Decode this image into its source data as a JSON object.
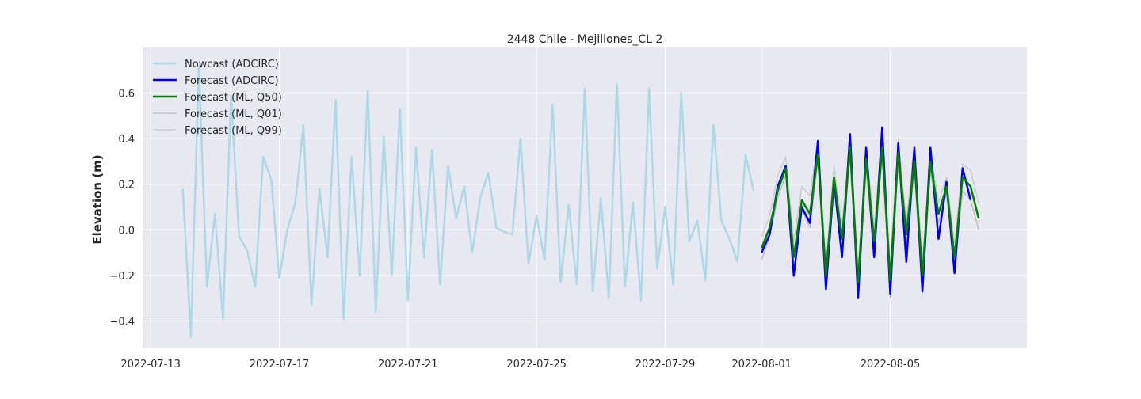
{
  "chart_data": {
    "type": "line",
    "title": "2448 Chile - Mejillones_CL 2",
    "xlabel": "",
    "ylabel": "Elevation (m)",
    "x_units": "date",
    "xlim": [
      "2022-07-12T18:00",
      "2022-08-09T06:00"
    ],
    "ylim": [
      -0.52,
      0.8
    ],
    "x_ticks": [
      "2022-07-13",
      "2022-07-17",
      "2022-07-21",
      "2022-07-25",
      "2022-07-29",
      "2022-08-01",
      "2022-08-05"
    ],
    "y_ticks": [
      -0.4,
      -0.2,
      0.0,
      0.2,
      0.4,
      0.6
    ],
    "y_tick_labels": [
      "−0.4",
      "−0.2",
      "0.0",
      "0.2",
      "0.4",
      "0.6"
    ],
    "background": "#e8e8f0",
    "grid": true,
    "legend_position": "upper-left",
    "series": [
      {
        "name": "Nowcast (ADCIRC)",
        "color": "#add8e6",
        "width": 2.5,
        "x": [
          "2022-07-14T00:00",
          "2022-07-14T06:00",
          "2022-07-14T12:00",
          "2022-07-14T18:00",
          "2022-07-15T00:00",
          "2022-07-15T06:00",
          "2022-07-15T12:00",
          "2022-07-15T18:00",
          "2022-07-16T00:00",
          "2022-07-16T06:00",
          "2022-07-16T12:00",
          "2022-07-16T18:00",
          "2022-07-17T00:00",
          "2022-07-17T06:00",
          "2022-07-17T12:00",
          "2022-07-17T18:00",
          "2022-07-18T00:00",
          "2022-07-18T06:00",
          "2022-07-18T12:00",
          "2022-07-18T18:00",
          "2022-07-19T00:00",
          "2022-07-19T06:00",
          "2022-07-19T12:00",
          "2022-07-19T18:00",
          "2022-07-20T00:00",
          "2022-07-20T06:00",
          "2022-07-20T12:00",
          "2022-07-20T18:00",
          "2022-07-21T00:00",
          "2022-07-21T06:00",
          "2022-07-21T12:00",
          "2022-07-21T18:00",
          "2022-07-22T00:00",
          "2022-07-22T06:00",
          "2022-07-22T12:00",
          "2022-07-22T18:00",
          "2022-07-23T00:00",
          "2022-07-23T06:00",
          "2022-07-23T12:00",
          "2022-07-23T18:00",
          "2022-07-24T00:00",
          "2022-07-24T06:00",
          "2022-07-24T12:00",
          "2022-07-24T18:00",
          "2022-07-25T00:00",
          "2022-07-25T06:00",
          "2022-07-25T12:00",
          "2022-07-25T18:00",
          "2022-07-26T00:00",
          "2022-07-26T06:00",
          "2022-07-26T12:00",
          "2022-07-26T18:00",
          "2022-07-27T00:00",
          "2022-07-27T06:00",
          "2022-07-27T12:00",
          "2022-07-27T18:00",
          "2022-07-28T00:00",
          "2022-07-28T06:00",
          "2022-07-28T12:00",
          "2022-07-28T18:00",
          "2022-07-29T00:00",
          "2022-07-29T06:00",
          "2022-07-29T12:00",
          "2022-07-29T18:00",
          "2022-07-30T00:00",
          "2022-07-30T06:00",
          "2022-07-30T12:00",
          "2022-07-30T18:00",
          "2022-07-31T00:00",
          "2022-07-31T06:00",
          "2022-07-31T12:00",
          "2022-07-31T18:00"
        ],
        "y": [
          0.18,
          -0.47,
          0.72,
          -0.25,
          0.07,
          -0.39,
          0.59,
          -0.03,
          -0.09,
          -0.25,
          0.32,
          0.22,
          -0.21,
          0.0,
          0.12,
          0.46,
          -0.33,
          0.18,
          -0.12,
          0.57,
          -0.39,
          0.32,
          -0.2,
          0.61,
          -0.36,
          0.41,
          -0.2,
          0.53,
          -0.31,
          0.36,
          -0.12,
          0.35,
          -0.24,
          0.28,
          0.05,
          0.19,
          -0.1,
          0.14,
          0.25,
          0.01,
          -0.01,
          -0.02,
          0.4,
          -0.15,
          0.06,
          -0.13,
          0.55,
          -0.23,
          0.11,
          -0.24,
          0.62,
          -0.27,
          0.14,
          -0.3,
          0.64,
          -0.25,
          0.12,
          -0.31,
          0.62,
          -0.17,
          0.1,
          -0.24,
          0.6,
          -0.05,
          0.04,
          -0.22,
          0.46,
          0.04,
          -0.04,
          -0.14,
          0.33,
          0.17
        ]
      },
      {
        "name": "Forecast (ADCIRC)",
        "color": "#0000ee",
        "width": 2.5,
        "x": [
          "2022-08-01T00:00",
          "2022-08-01T06:00",
          "2022-08-01T12:00",
          "2022-08-01T18:00",
          "2022-08-02T00:00",
          "2022-08-02T06:00",
          "2022-08-02T12:00",
          "2022-08-02T18:00",
          "2022-08-03T00:00",
          "2022-08-03T06:00",
          "2022-08-03T12:00",
          "2022-08-03T18:00",
          "2022-08-04T00:00",
          "2022-08-04T06:00",
          "2022-08-04T12:00",
          "2022-08-04T18:00",
          "2022-08-05T00:00",
          "2022-08-05T06:00",
          "2022-08-05T12:00",
          "2022-08-05T18:00",
          "2022-08-06T00:00",
          "2022-08-06T06:00",
          "2022-08-06T12:00",
          "2022-08-06T18:00",
          "2022-08-07T00:00",
          "2022-08-07T06:00",
          "2022-08-07T12:00",
          "2022-08-07T18:00"
        ],
        "y": [
          -0.1,
          -0.02,
          0.19,
          0.28,
          -0.2,
          0.1,
          0.03,
          0.39,
          -0.26,
          0.22,
          -0.12,
          0.42,
          -0.3,
          0.36,
          -0.12,
          0.45,
          -0.28,
          0.38,
          -0.14,
          0.36,
          -0.27,
          0.36,
          -0.04,
          0.21,
          -0.19,
          0.27,
          0.13,
          null
        ]
      },
      {
        "name": "Forecast (ML, Q50)",
        "color": "#008000",
        "width": 2.5,
        "x": [
          "2022-08-01T00:00",
          "2022-08-01T06:00",
          "2022-08-01T12:00",
          "2022-08-01T18:00",
          "2022-08-02T00:00",
          "2022-08-02T06:00",
          "2022-08-02T12:00",
          "2022-08-02T18:00",
          "2022-08-03T00:00",
          "2022-08-03T06:00",
          "2022-08-03T12:00",
          "2022-08-03T18:00",
          "2022-08-04T00:00",
          "2022-08-04T06:00",
          "2022-08-04T12:00",
          "2022-08-04T18:00",
          "2022-08-05T00:00",
          "2022-08-05T06:00",
          "2022-08-05T12:00",
          "2022-08-05T18:00",
          "2022-08-06T00:00",
          "2022-08-06T06:00",
          "2022-08-06T12:00",
          "2022-08-06T18:00",
          "2022-08-07T00:00",
          "2022-08-07T06:00",
          "2022-08-07T12:00",
          "2022-08-07T18:00"
        ],
        "y": [
          -0.08,
          0.01,
          0.17,
          0.27,
          -0.12,
          0.13,
          0.07,
          0.33,
          -0.2,
          0.23,
          -0.04,
          0.36,
          -0.23,
          0.31,
          -0.05,
          0.36,
          -0.22,
          0.34,
          -0.02,
          0.3,
          -0.2,
          0.3,
          0.07,
          0.19,
          -0.12,
          0.23,
          0.19,
          0.05
        ]
      },
      {
        "name": "Forecast (ML, Q01)",
        "color": "#b8b8b8",
        "width": 1.3,
        "x": [
          "2022-08-01T00:00",
          "2022-08-01T06:00",
          "2022-08-01T12:00",
          "2022-08-01T18:00",
          "2022-08-02T00:00",
          "2022-08-02T06:00",
          "2022-08-02T12:00",
          "2022-08-02T18:00",
          "2022-08-03T00:00",
          "2022-08-03T06:00",
          "2022-08-03T12:00",
          "2022-08-03T18:00",
          "2022-08-04T00:00",
          "2022-08-04T06:00",
          "2022-08-04T12:00",
          "2022-08-04T18:00",
          "2022-08-05T00:00",
          "2022-08-05T06:00",
          "2022-08-05T12:00",
          "2022-08-05T18:00",
          "2022-08-06T00:00",
          "2022-08-06T06:00",
          "2022-08-06T12:00",
          "2022-08-06T18:00",
          "2022-08-07T00:00",
          "2022-08-07T06:00",
          "2022-08-07T12:00",
          "2022-08-07T18:00"
        ],
        "y": [
          -0.13,
          -0.03,
          0.14,
          0.24,
          -0.21,
          0.09,
          0.01,
          0.3,
          -0.26,
          0.18,
          -0.1,
          0.32,
          -0.3,
          0.26,
          -0.1,
          0.32,
          -0.3,
          0.3,
          -0.08,
          0.26,
          -0.28,
          0.26,
          0.03,
          0.16,
          -0.18,
          0.17,
          0.13,
          0.0
        ]
      },
      {
        "name": "Forecast (ML, Q99)",
        "color": "#c8c8c8",
        "width": 1.3,
        "x": [
          "2022-08-01T00:00",
          "2022-08-01T06:00",
          "2022-08-01T12:00",
          "2022-08-01T18:00",
          "2022-08-02T00:00",
          "2022-08-02T06:00",
          "2022-08-02T12:00",
          "2022-08-02T18:00",
          "2022-08-03T00:00",
          "2022-08-03T06:00",
          "2022-08-03T12:00",
          "2022-08-03T18:00",
          "2022-08-04T00:00",
          "2022-08-04T06:00",
          "2022-08-04T12:00",
          "2022-08-04T18:00",
          "2022-08-05T00:00",
          "2022-08-05T06:00",
          "2022-08-05T12:00",
          "2022-08-05T18:00",
          "2022-08-06T00:00",
          "2022-08-06T06:00",
          "2022-08-06T12:00",
          "2022-08-06T18:00",
          "2022-08-07T00:00",
          "2022-08-07T06:00",
          "2022-08-07T12:00",
          "2022-08-07T18:00"
        ],
        "y": [
          -0.03,
          0.06,
          0.24,
          0.32,
          -0.05,
          0.19,
          0.15,
          0.39,
          -0.15,
          0.28,
          0.02,
          0.41,
          -0.17,
          0.36,
          0.02,
          0.41,
          -0.15,
          0.4,
          0.04,
          0.36,
          -0.14,
          0.35,
          0.12,
          0.23,
          -0.06,
          0.29,
          0.26,
          0.12
        ]
      }
    ]
  }
}
